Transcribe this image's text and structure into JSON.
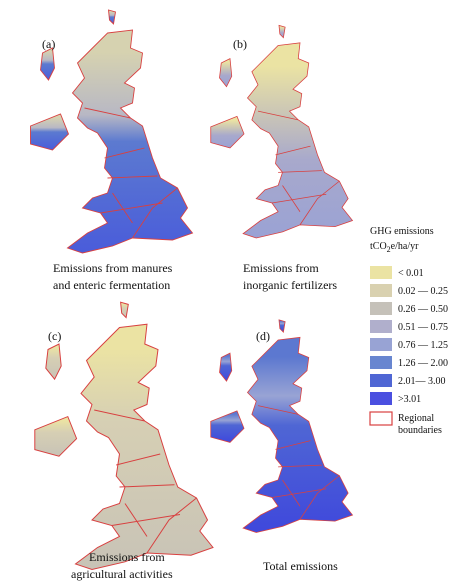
{
  "panels": [
    {
      "label": "(a)",
      "caption": [
        "Emissions from  manures",
        "and enteric fermentation"
      ]
    },
    {
      "label": "(b)",
      "caption": [
        "Emissions from",
        "inorganic fertilizers"
      ]
    },
    {
      "label": "(c)",
      "caption": [
        "Emissions from",
        "agricultural activities"
      ]
    },
    {
      "label": "(d)",
      "caption": [
        "Total emissions"
      ]
    }
  ],
  "legend": {
    "title": "GHG emissions",
    "unit": [
      "tCO",
      "2",
      "e/ha/yr"
    ],
    "items": [
      {
        "label": "< 0.01",
        "color": "#ebe3a3"
      },
      {
        "label": "0.02 —  0.25",
        "color": "#d9d1b0"
      },
      {
        "label": "0.26 —  0.50",
        "color": "#c5c1b9"
      },
      {
        "label": "0.51 —  0.75",
        "color": "#b0afcc"
      },
      {
        "label": "0.76 —  1.25",
        "color": "#98a3d4"
      },
      {
        "label": "1.26 —  2.00",
        "color": "#6886d0"
      },
      {
        "label": "2.01— 3.00",
        "color": "#4f66d4"
      },
      {
        "label": ">3.01",
        "color": "#4a4fe0"
      }
    ],
    "boundary": [
      "Regional",
      "boundaries"
    ]
  }
}
